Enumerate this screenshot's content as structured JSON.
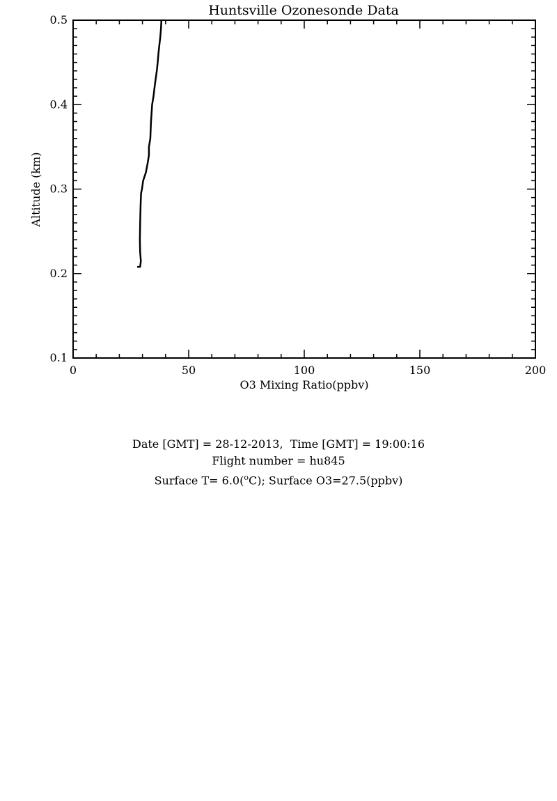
{
  "chart_data": {
    "type": "line",
    "title": "Huntsville Ozonesonde Data",
    "xlabel": "O3 Mixing Ratio(ppbv)",
    "ylabel": "Altitude (km)",
    "xlim": [
      0,
      200
    ],
    "ylim": [
      0.1,
      0.5
    ],
    "x_ticks": [
      0,
      50,
      100,
      150,
      200
    ],
    "x_tick_labels": [
      "0",
      "50",
      "100",
      "150",
      "200"
    ],
    "y_ticks": [
      0.1,
      0.2,
      0.3,
      0.4,
      0.5
    ],
    "y_tick_labels": [
      "0.1",
      "0.2",
      "0.3",
      "0.4",
      "0.5"
    ],
    "x_minor_step": 10,
    "y_minor_step": 0.01,
    "grid": false,
    "legend": "none",
    "line_color": "#000000",
    "series": [
      {
        "x": [
          28.0,
          29.0,
          29.3,
          29.0,
          28.9,
          29.0,
          29.2,
          29.4,
          29.8,
          30.3,
          31.5,
          32.2,
          32.8,
          32.8,
          33.4,
          33.7,
          34.2,
          34.8,
          35.2,
          35.7,
          36.2,
          36.6,
          36.9,
          37.3,
          37.7,
          38.0,
          38.2
        ],
        "y": [
          0.208,
          0.208,
          0.215,
          0.225,
          0.24,
          0.26,
          0.28,
          0.295,
          0.3,
          0.31,
          0.32,
          0.33,
          0.34,
          0.35,
          0.36,
          0.38,
          0.4,
          0.41,
          0.42,
          0.43,
          0.44,
          0.45,
          0.46,
          0.47,
          0.48,
          0.49,
          0.5
        ]
      }
    ]
  },
  "info": {
    "line1": "Date [GMT] = 28-12-2013,  Time [GMT] = 19:00:16",
    "line2": "Flight number = hu845",
    "line3_prefix": "Surface T= 6.0(",
    "line3_sup": "o",
    "line3_suffix": "C); Surface O3=27.5(ppbv)"
  }
}
